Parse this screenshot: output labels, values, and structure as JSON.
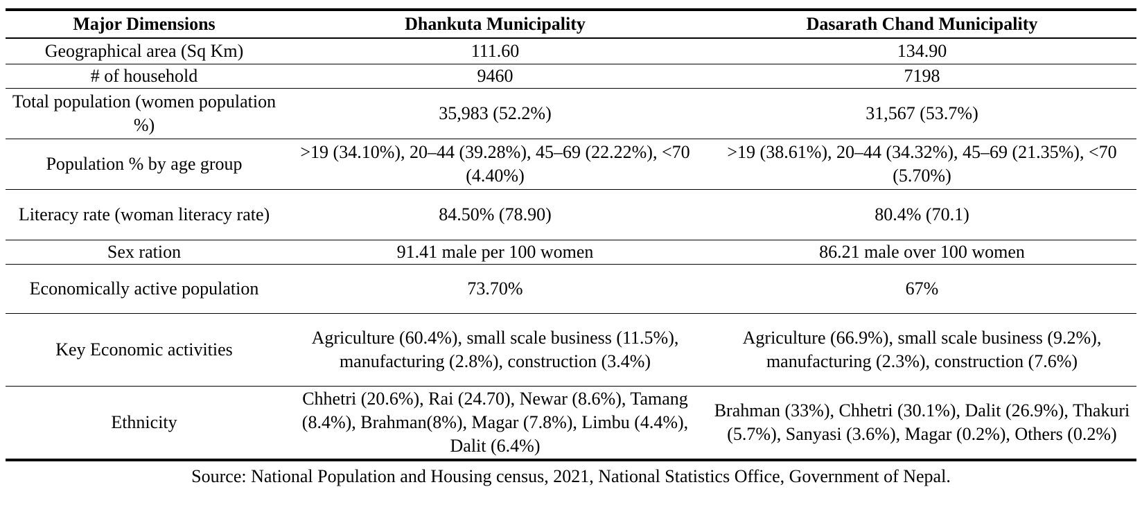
{
  "table": {
    "headers": [
      "Major Dimensions",
      "Dhankuta Municipality",
      "Dasarath Chand Municipality"
    ],
    "rows": [
      {
        "dimension": "Geographical area (Sq Km)",
        "dhankuta": "111.60",
        "dasarath": "134.90"
      },
      {
        "dimension": "# of household",
        "dhankuta": "9460",
        "dasarath": "7198"
      },
      {
        "dimension": "Total population (women population %)",
        "dhankuta": "35,983 (52.2%)",
        "dasarath": "31,567 (53.7%)"
      },
      {
        "dimension": "Population % by age group",
        "dhankuta": ">19 (34.10%), 20–44 (39.28%), 45–69 (22.22%), <70 (4.40%)",
        "dasarath": ">19 (38.61%), 20–44 (34.32%), 45–69 (21.35%), <70 (5.70%)"
      },
      {
        "dimension": "Literacy rate (woman literacy rate)",
        "dhankuta": "84.50% (78.90)",
        "dasarath": "80.4% (70.1)"
      },
      {
        "dimension": "Sex ration",
        "dhankuta": "91.41 male per 100 women",
        "dasarath": "86.21 male over 100 women"
      },
      {
        "dimension": "Economically active population",
        "dhankuta": "73.70%",
        "dasarath": "67%"
      },
      {
        "dimension": "Key Economic activities",
        "dhankuta": "Agriculture (60.4%), small scale business (11.5%), manufacturing (2.8%), construction (3.4%)",
        "dasarath": "Agriculture (66.9%), small scale business (9.2%), manufacturing (2.3%), construction (7.6%)"
      },
      {
        "dimension": "Ethnicity",
        "dhankuta": "Chhetri (20.6%), Rai (24.70), Newar (8.6%), Tamang (8.4%), Brahman(8%), Magar (7.8%), Limbu (4.4%), Dalit (6.4%)",
        "dasarath": "Brahman (33%), Chhetri (30.1%), Dalit (26.9%), Thakuri (5.7%), Sanyasi (3.6%), Magar (0.2%), Others (0.2%)"
      }
    ]
  },
  "source": "Source: National Population and Housing census, 2021, National Statistics Office, Government of Nepal."
}
